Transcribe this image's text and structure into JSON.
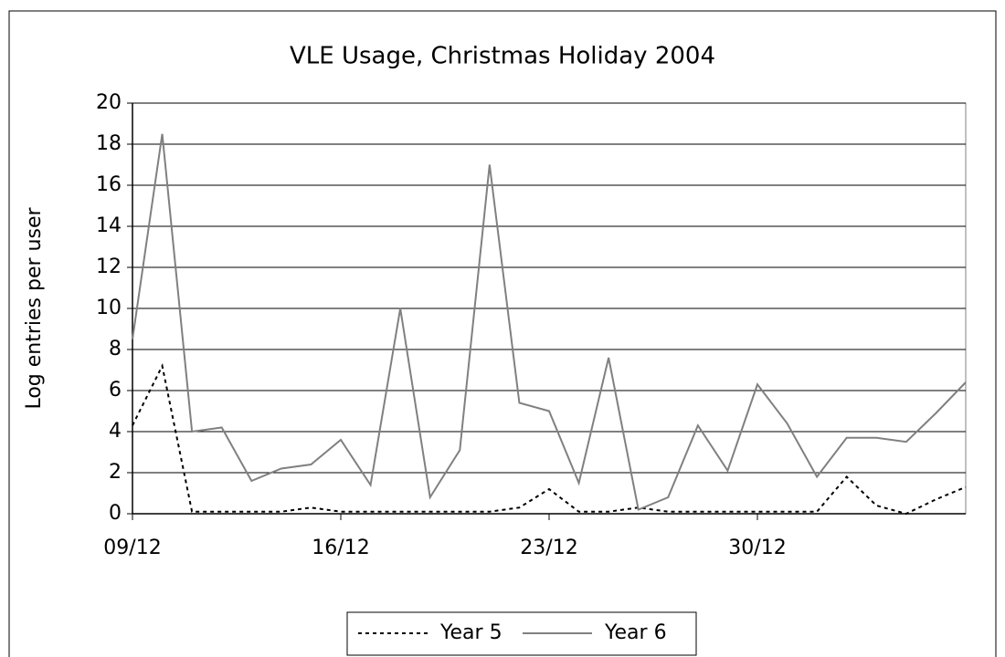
{
  "chart_data": {
    "type": "line",
    "title": "VLE Usage, Christmas Holiday 2004",
    "y_label": "Log entries per user",
    "categories": [
      "09/12",
      null,
      null,
      null,
      null,
      null,
      null,
      "16/12",
      null,
      null,
      null,
      null,
      null,
      null,
      "23/12",
      null,
      null,
      null,
      null,
      null,
      null,
      "30/12",
      null,
      null,
      null,
      null,
      null,
      null,
      null
    ],
    "series": [
      {
        "name": "Year 5",
        "color": "#000000",
        "dash": "4,4",
        "values": [
          4.3,
          7.2,
          0.1,
          0.1,
          0.1,
          0.1,
          0.3,
          0.1,
          0.1,
          0.1,
          0.1,
          0.1,
          0.1,
          0.3,
          1.2,
          0.1,
          0.1,
          0.3,
          0.1,
          0.1,
          0.1,
          0.1,
          0.1,
          0.1,
          1.8,
          0.4,
          0.0,
          0.7,
          1.3
        ]
      },
      {
        "name": "Year 6",
        "color": "#808080",
        "dash": "none",
        "values": [
          8.5,
          18.5,
          4.0,
          4.2,
          1.6,
          2.2,
          2.4,
          3.6,
          1.4,
          10.0,
          0.8,
          3.1,
          17.0,
          5.4,
          5.0,
          1.5,
          7.6,
          0.2,
          0.8,
          4.3,
          2.1,
          6.3,
          4.4,
          1.8,
          3.7,
          3.7,
          3.5,
          4.9,
          6.4
        ]
      }
    ],
    "ylim": [
      0,
      20
    ],
    "yticks": [
      0,
      2,
      4,
      6,
      8,
      10,
      12,
      14,
      16,
      18,
      20
    ],
    "grid": true,
    "legend": "bottom"
  }
}
